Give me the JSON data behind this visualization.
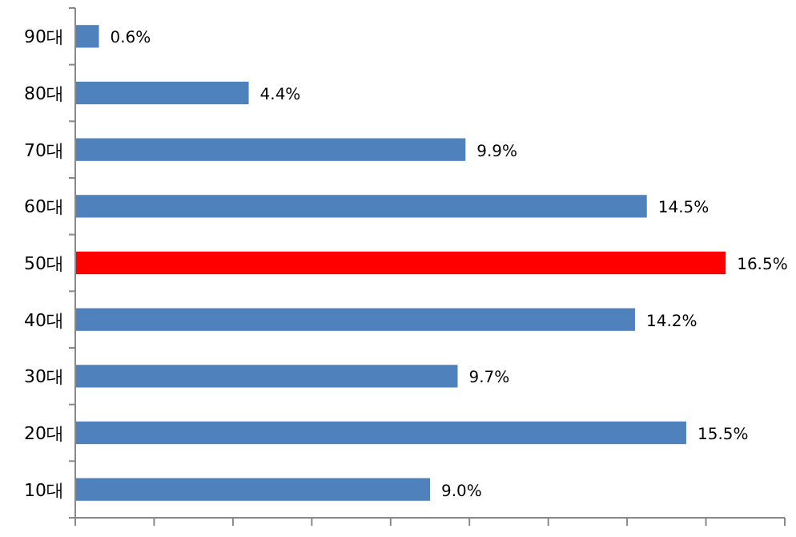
{
  "chart_data": {
    "type": "bar",
    "orientation": "horizontal",
    "categories": [
      "90대",
      "80대",
      "70대",
      "60대",
      "50대",
      "40대",
      "30대",
      "20대",
      "10대"
    ],
    "values": [
      0.6,
      4.4,
      9.9,
      14.5,
      16.5,
      14.2,
      9.7,
      15.5,
      9.0
    ],
    "value_labels": [
      "0.6%",
      "4.4%",
      "9.9%",
      "14.5%",
      "16.5%",
      "14.2%",
      "9.7%",
      "15.5%",
      "9.0%"
    ],
    "colors": [
      "#4f81bd",
      "#4f81bd",
      "#4f81bd",
      "#4f81bd",
      "#ff0000",
      "#4f81bd",
      "#4f81bd",
      "#4f81bd",
      "#4f81bd"
    ],
    "xlim": [
      0,
      18
    ],
    "xticks": [
      {
        "value": 0,
        "label": null
      },
      {
        "value": 2,
        "label": null
      },
      {
        "value": 4,
        "label": null
      },
      {
        "value": 6,
        "label": null
      },
      {
        "value": 8,
        "label": null
      },
      {
        "value": 10,
        "label": null
      },
      {
        "value": 12,
        "label": null
      },
      {
        "value": 14,
        "label": null
      },
      {
        "value": 16,
        "label": null
      },
      {
        "value": 18,
        "label": null
      }
    ],
    "tick_labels": "y",
    "grid": false
  }
}
